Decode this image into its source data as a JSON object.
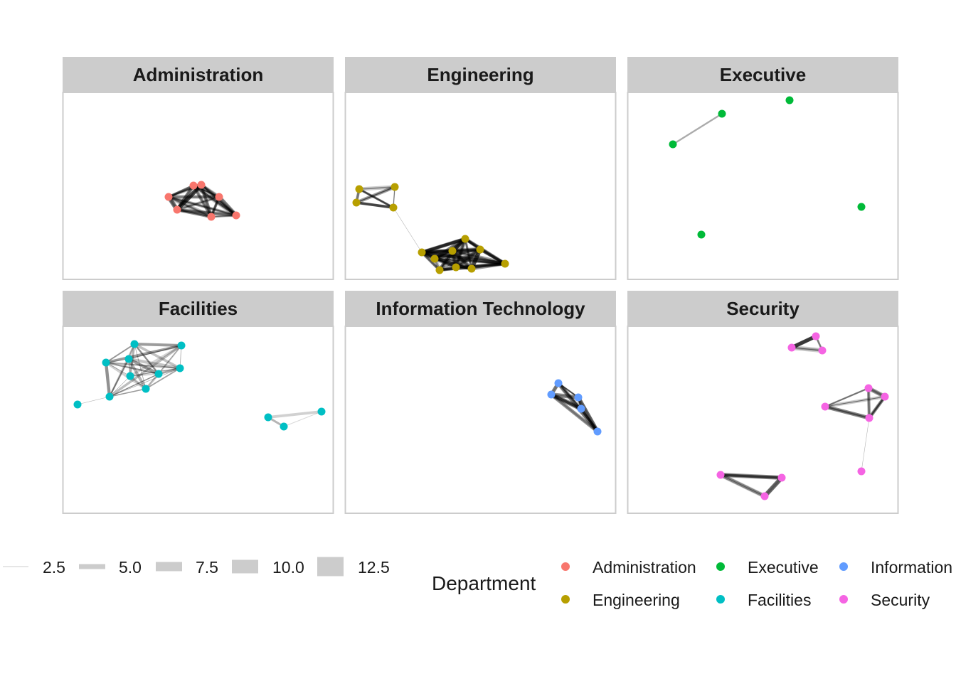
{
  "chart_data": {
    "type": "network",
    "facet_by": "Department",
    "facets": [
      "Administration",
      "Engineering",
      "Executive",
      "Facilities",
      "Information Technology",
      "Security"
    ],
    "edge_width_legend": {
      "breaks": [
        "2.5",
        "5.0",
        "7.5",
        "10.0",
        "12.5"
      ],
      "values": [
        2.5,
        5.0,
        7.5,
        10.0,
        12.5
      ]
    },
    "color_legend": {
      "title": "Department",
      "entries": [
        {
          "label": "Administration",
          "color": "#F8766D"
        },
        {
          "label": "Engineering",
          "color": "#B79F00"
        },
        {
          "label": "Executive",
          "color": "#00BA38"
        },
        {
          "label": "Facilities",
          "color": "#00BFC4"
        },
        {
          "label": "Information Technology",
          "color": "#619CFF"
        },
        {
          "label": "Security",
          "color": "#F564E3"
        }
      ]
    },
    "legend_position": "bottom",
    "grid": false
  }
}
